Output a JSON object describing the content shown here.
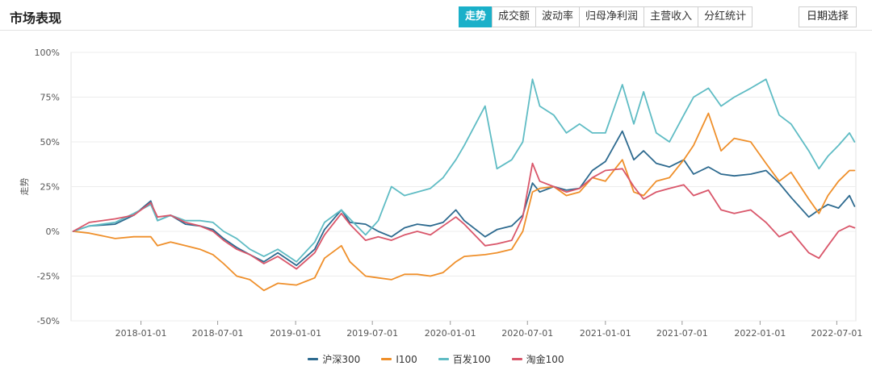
{
  "header": {
    "title": "市场表现",
    "tabs": [
      {
        "label": "走势",
        "active": true
      },
      {
        "label": "成交额",
        "active": false
      },
      {
        "label": "波动率",
        "active": false
      },
      {
        "label": "归母净利润",
        "active": false
      },
      {
        "label": "主营收入",
        "active": false
      },
      {
        "label": "分红统计",
        "active": false
      }
    ],
    "date_button": "日期选择"
  },
  "colors": {
    "accent": "#1ab0c9",
    "沪深300": "#2d6a8f",
    "I100": "#ef8f2a",
    "百发100": "#5fbcc4",
    "淘金100": "#d9566a"
  },
  "chart_data": {
    "type": "line",
    "ylabel": "走势",
    "xlabel": "",
    "ylim": [
      -50,
      100
    ],
    "yticks": [
      -50,
      -25,
      0,
      25,
      50,
      75,
      100
    ],
    "ytick_labels": [
      "-50%",
      "-25%",
      "0%",
      "25%",
      "50%",
      "75%",
      "100%"
    ],
    "xlim": [
      "2017-07-20",
      "2022-08-15"
    ],
    "xticks": [
      "2018-01-01",
      "2018-07-01",
      "2019-01-01",
      "2019-07-01",
      "2020-01-01",
      "2020-07-01",
      "2021-01-01",
      "2021-07-01",
      "2022-01-01",
      "2022-07-01"
    ],
    "grid": true,
    "legend_position": "bottom",
    "series": [
      {
        "name": "沪深300",
        "x": [
          "2017-07-25",
          "2017-09-01",
          "2017-11-01",
          "2017-12-15",
          "2018-01-24",
          "2018-02-09",
          "2018-03-12",
          "2018-04-16",
          "2018-05-20",
          "2018-06-20",
          "2018-07-15",
          "2018-08-15",
          "2018-09-15",
          "2018-10-18",
          "2018-11-20",
          "2019-01-03",
          "2019-02-15",
          "2019-03-10",
          "2019-04-19",
          "2019-05-09",
          "2019-06-15",
          "2019-07-15",
          "2019-08-15",
          "2019-09-15",
          "2019-10-15",
          "2019-11-15",
          "2019-12-15",
          "2020-01-14",
          "2020-02-03",
          "2020-03-23",
          "2020-04-20",
          "2020-05-25",
          "2020-06-20",
          "2020-07-13",
          "2020-07-30",
          "2020-09-01",
          "2020-10-01",
          "2020-11-01",
          "2020-12-01",
          "2021-01-01",
          "2021-02-10",
          "2021-03-09",
          "2021-04-01",
          "2021-05-01",
          "2021-06-01",
          "2021-07-05",
          "2021-07-28",
          "2021-09-01",
          "2021-10-01",
          "2021-11-01",
          "2021-12-10",
          "2022-01-15",
          "2022-02-15",
          "2022-03-15",
          "2022-04-26",
          "2022-05-20",
          "2022-06-10",
          "2022-07-05",
          "2022-07-31",
          "2022-08-12"
        ],
        "values": [
          0,
          3,
          4,
          9,
          17,
          6,
          9,
          4,
          3,
          1,
          -4,
          -9,
          -13,
          -17,
          -12,
          -19,
          -10,
          1,
          12,
          5,
          4,
          0,
          -3,
          2,
          4,
          3,
          5,
          12,
          6,
          -3,
          1,
          3,
          9,
          27,
          22,
          25,
          23,
          24,
          34,
          39,
          56,
          40,
          45,
          38,
          36,
          40,
          32,
          36,
          32,
          31,
          32,
          34,
          27,
          19,
          8,
          12,
          15,
          13,
          20,
          14
        ]
      },
      {
        "name": "I100",
        "x": [
          "2017-07-25",
          "2017-09-01",
          "2017-11-01",
          "2017-12-15",
          "2018-01-24",
          "2018-02-09",
          "2018-03-12",
          "2018-04-16",
          "2018-05-20",
          "2018-06-20",
          "2018-07-15",
          "2018-08-15",
          "2018-09-15",
          "2018-10-18",
          "2018-11-20",
          "2019-01-03",
          "2019-02-15",
          "2019-03-10",
          "2019-04-19",
          "2019-05-09",
          "2019-06-15",
          "2019-07-15",
          "2019-08-15",
          "2019-09-15",
          "2019-10-15",
          "2019-11-15",
          "2019-12-15",
          "2020-01-14",
          "2020-02-03",
          "2020-03-23",
          "2020-04-20",
          "2020-05-25",
          "2020-06-20",
          "2020-07-13",
          "2020-07-30",
          "2020-09-01",
          "2020-10-01",
          "2020-11-01",
          "2020-12-01",
          "2021-01-01",
          "2021-02-10",
          "2021-03-09",
          "2021-04-01",
          "2021-05-01",
          "2021-06-01",
          "2021-07-05",
          "2021-07-28",
          "2021-09-01",
          "2021-10-01",
          "2021-11-01",
          "2021-12-10",
          "2022-01-15",
          "2022-02-15",
          "2022-03-15",
          "2022-04-26",
          "2022-05-20",
          "2022-06-10",
          "2022-07-05",
          "2022-07-31",
          "2022-08-12"
        ],
        "values": [
          0,
          -1,
          -4,
          -3,
          -3,
          -8,
          -6,
          -8,
          -10,
          -13,
          -18,
          -25,
          -27,
          -33,
          -29,
          -30,
          -26,
          -15,
          -8,
          -17,
          -25,
          -26,
          -27,
          -24,
          -24,
          -25,
          -23,
          -17,
          -14,
          -13,
          -12,
          -10,
          0,
          22,
          24,
          25,
          20,
          22,
          30,
          28,
          40,
          22,
          20,
          28,
          30,
          40,
          48,
          66,
          45,
          52,
          50,
          38,
          28,
          33,
          18,
          10,
          20,
          28,
          34,
          34
        ]
      },
      {
        "name": "百发100",
        "x": [
          "2017-07-25",
          "2017-09-01",
          "2017-11-01",
          "2017-12-15",
          "2018-01-24",
          "2018-02-09",
          "2018-03-12",
          "2018-04-16",
          "2018-05-20",
          "2018-06-20",
          "2018-07-15",
          "2018-08-15",
          "2018-09-15",
          "2018-10-18",
          "2018-11-20",
          "2019-01-03",
          "2019-02-15",
          "2019-03-10",
          "2019-04-19",
          "2019-05-09",
          "2019-06-15",
          "2019-07-15",
          "2019-08-15",
          "2019-09-15",
          "2019-10-15",
          "2019-11-15",
          "2019-12-15",
          "2020-01-14",
          "2020-02-03",
          "2020-03-23",
          "2020-04-20",
          "2020-05-25",
          "2020-06-20",
          "2020-07-13",
          "2020-07-30",
          "2020-09-01",
          "2020-10-01",
          "2020-11-01",
          "2020-12-01",
          "2021-01-01",
          "2021-02-10",
          "2021-03-09",
          "2021-04-01",
          "2021-05-01",
          "2021-06-01",
          "2021-07-05",
          "2021-07-28",
          "2021-09-01",
          "2021-10-01",
          "2021-11-01",
          "2021-12-10",
          "2022-01-15",
          "2022-02-15",
          "2022-03-15",
          "2022-04-26",
          "2022-05-20",
          "2022-06-10",
          "2022-07-05",
          "2022-07-31",
          "2022-08-12"
        ],
        "values": [
          0,
          3,
          5,
          10,
          15,
          6,
          9,
          6,
          6,
          5,
          0,
          -4,
          -10,
          -14,
          -10,
          -17,
          -6,
          5,
          12,
          7,
          -2,
          6,
          25,
          20,
          22,
          24,
          30,
          40,
          48,
          70,
          35,
          40,
          50,
          85,
          70,
          65,
          55,
          60,
          55,
          55,
          82,
          60,
          78,
          55,
          50,
          65,
          75,
          80,
          70,
          75,
          80,
          85,
          65,
          60,
          45,
          35,
          42,
          48,
          55,
          50
        ]
      },
      {
        "name": "淘金100",
        "x": [
          "2017-07-25",
          "2017-09-01",
          "2017-11-01",
          "2017-12-15",
          "2018-01-24",
          "2018-02-09",
          "2018-03-12",
          "2018-04-16",
          "2018-05-20",
          "2018-06-20",
          "2018-07-15",
          "2018-08-15",
          "2018-09-15",
          "2018-10-18",
          "2018-11-20",
          "2019-01-03",
          "2019-02-15",
          "2019-03-10",
          "2019-04-19",
          "2019-05-09",
          "2019-06-15",
          "2019-07-15",
          "2019-08-15",
          "2019-09-15",
          "2019-10-15",
          "2019-11-15",
          "2019-12-15",
          "2020-01-14",
          "2020-02-03",
          "2020-03-23",
          "2020-04-20",
          "2020-05-25",
          "2020-06-20",
          "2020-07-13",
          "2020-07-30",
          "2020-09-01",
          "2020-10-01",
          "2020-11-01",
          "2020-12-01",
          "2021-01-01",
          "2021-02-10",
          "2021-03-09",
          "2021-04-01",
          "2021-05-01",
          "2021-06-01",
          "2021-07-05",
          "2021-07-28",
          "2021-09-01",
          "2021-10-01",
          "2021-11-01",
          "2021-12-10",
          "2022-01-15",
          "2022-02-15",
          "2022-03-15",
          "2022-04-26",
          "2022-05-20",
          "2022-06-10",
          "2022-07-05",
          "2022-07-31",
          "2022-08-12"
        ],
        "values": [
          0,
          5,
          7,
          9,
          16,
          8,
          9,
          5,
          3,
          0,
          -5,
          -10,
          -13,
          -18,
          -14,
          -21,
          -12,
          -2,
          10,
          4,
          -5,
          -3,
          -5,
          -2,
          0,
          -2,
          3,
          8,
          4,
          -8,
          -7,
          -5,
          8,
          38,
          28,
          25,
          22,
          24,
          30,
          34,
          35,
          25,
          18,
          22,
          24,
          26,
          20,
          23,
          12,
          10,
          12,
          5,
          -3,
          0,
          -12,
          -15,
          -8,
          0,
          3,
          2
        ]
      }
    ]
  }
}
